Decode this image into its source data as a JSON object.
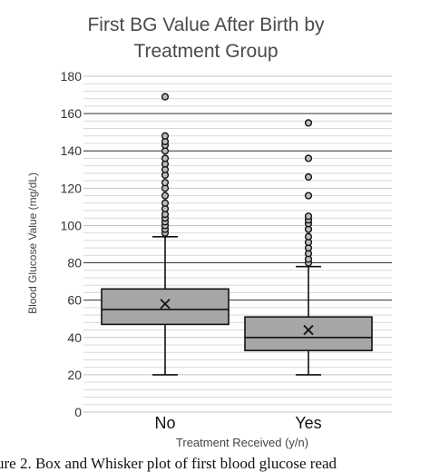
{
  "chart_data": {
    "type": "box",
    "title_line1": "First BG Value After Birth by",
    "title_line2": "Treatment Group",
    "xlabel": "Treatment Received (y/n)",
    "ylabel": "Blood Glucose Value (mg/dL)",
    "ylim": [
      0,
      180
    ],
    "yticks": [
      0,
      20,
      40,
      60,
      80,
      100,
      120,
      140,
      160,
      180
    ],
    "major_gridlines": [
      60,
      80,
      140,
      160
    ],
    "minor_gridlines": [
      4,
      8,
      12,
      16,
      24,
      28,
      32,
      36,
      44,
      48,
      52,
      56,
      64,
      68,
      72,
      76,
      84,
      88,
      92,
      96,
      104,
      108,
      112,
      116,
      124,
      128,
      132,
      136,
      144,
      148,
      152,
      156,
      164,
      168,
      172,
      176
    ],
    "categories": [
      "No",
      "Yes"
    ],
    "boxes": [
      {
        "category": "No",
        "min": 20,
        "q1": 47,
        "median": 55,
        "q3": 66,
        "max": 94,
        "mean": 58,
        "outliers": [
          96,
          98,
          100,
          102,
          104,
          106,
          109,
          112,
          116,
          120,
          123,
          127,
          130,
          133,
          136,
          140,
          143,
          145,
          148,
          169
        ]
      },
      {
        "category": "Yes",
        "min": 20,
        "q1": 33,
        "median": 40,
        "q3": 51,
        "max": 78,
        "mean": 44,
        "outliers": [
          80,
          82,
          85,
          88,
          91,
          94,
          98,
          101,
          103,
          105,
          116,
          126,
          136,
          155
        ]
      }
    ],
    "box_color": "#a6a6a6",
    "caption": "ure 2. Box and Whisker plot of first blood glucose read"
  }
}
